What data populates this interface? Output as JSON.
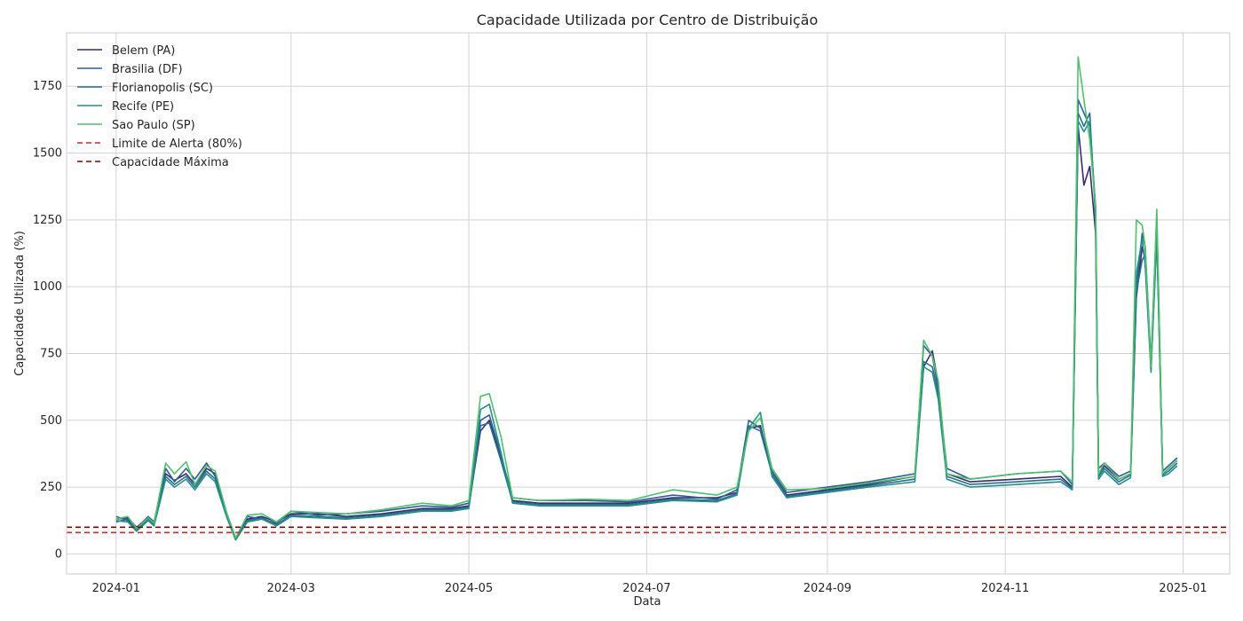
{
  "chart_data": {
    "type": "line",
    "title": "Capacidade Utilizada por Centro de Distribuição",
    "xlabel": "Data",
    "ylabel": "Capacidade Utilizada (%)",
    "xlim": [
      "2023-12-15",
      "2025-01-17"
    ],
    "ylim": [
      -75,
      1950
    ],
    "x_ticks": [
      "2024-01",
      "2024-03",
      "2024-05",
      "2024-07",
      "2024-09",
      "2024-11",
      "2025-01"
    ],
    "x_tick_dates": [
      "2024-01-01",
      "2024-03-01",
      "2024-05-01",
      "2024-07-01",
      "2024-09-01",
      "2024-11-01",
      "2025-01-01"
    ],
    "y_ticks": [
      0,
      250,
      500,
      750,
      1000,
      1250,
      1500,
      1750
    ],
    "grid": true,
    "legend_position": "top-left",
    "series": [
      {
        "name": "Belem (PA)",
        "color": "#3b2a72",
        "x": [
          "2024-01-01",
          "2024-01-05",
          "2024-01-08",
          "2024-01-12",
          "2024-01-14",
          "2024-01-18",
          "2024-01-21",
          "2024-01-25",
          "2024-01-28",
          "2024-02-01",
          "2024-02-04",
          "2024-02-08",
          "2024-02-11",
          "2024-02-15",
          "2024-02-20",
          "2024-02-25",
          "2024-03-01",
          "2024-03-10",
          "2024-03-20",
          "2024-04-01",
          "2024-04-15",
          "2024-04-25",
          "2024-05-01",
          "2024-05-05",
          "2024-05-08",
          "2024-05-12",
          "2024-05-16",
          "2024-05-25",
          "2024-06-10",
          "2024-06-25",
          "2024-07-10",
          "2024-07-25",
          "2024-08-01",
          "2024-08-05",
          "2024-08-09",
          "2024-08-13",
          "2024-08-18",
          "2024-09-01",
          "2024-09-15",
          "2024-10-01",
          "2024-10-04",
          "2024-10-07",
          "2024-10-09",
          "2024-10-12",
          "2024-10-20",
          "2024-11-05",
          "2024-11-20",
          "2024-11-24",
          "2024-11-26",
          "2024-11-28",
          "2024-11-30",
          "2024-12-02",
          "2024-12-03",
          "2024-12-05",
          "2024-12-10",
          "2024-12-14",
          "2024-12-16",
          "2024-12-18",
          "2024-12-19",
          "2024-12-21",
          "2024-12-23",
          "2024-12-25",
          "2024-12-27",
          "2024-12-30"
        ],
        "values": [
          130,
          135,
          100,
          135,
          115,
          300,
          275,
          300,
          260,
          320,
          300,
          150,
          60,
          130,
          140,
          120,
          150,
          150,
          140,
          150,
          170,
          170,
          180,
          460,
          500,
          360,
          200,
          190,
          190,
          190,
          210,
          210,
          230,
          470,
          480,
          300,
          220,
          240,
          260,
          290,
          700,
          760,
          640,
          300,
          270,
          280,
          290,
          250,
          1600,
          1380,
          1450,
          1200,
          300,
          330,
          280,
          300,
          960,
          1150,
          1100,
          700,
          1230,
          300,
          320,
          350
        ]
      },
      {
        "name": "Brasilia (DF)",
        "color": "#2f5d96",
        "x": [
          "2024-01-01",
          "2024-01-05",
          "2024-01-08",
          "2024-01-12",
          "2024-01-14",
          "2024-01-18",
          "2024-01-21",
          "2024-01-25",
          "2024-01-28",
          "2024-02-01",
          "2024-02-04",
          "2024-02-08",
          "2024-02-11",
          "2024-02-15",
          "2024-02-20",
          "2024-02-25",
          "2024-03-01",
          "2024-03-10",
          "2024-03-20",
          "2024-04-01",
          "2024-04-15",
          "2024-04-25",
          "2024-05-01",
          "2024-05-05",
          "2024-05-08",
          "2024-05-12",
          "2024-05-16",
          "2024-05-25",
          "2024-06-10",
          "2024-06-25",
          "2024-07-10",
          "2024-07-25",
          "2024-08-01",
          "2024-08-05",
          "2024-08-09",
          "2024-08-13",
          "2024-08-18",
          "2024-09-01",
          "2024-09-15",
          "2024-10-01",
          "2024-10-04",
          "2024-10-07",
          "2024-10-09",
          "2024-10-12",
          "2024-10-20",
          "2024-11-05",
          "2024-11-20",
          "2024-11-24",
          "2024-11-26",
          "2024-11-28",
          "2024-11-30",
          "2024-12-02",
          "2024-12-03",
          "2024-12-05",
          "2024-12-10",
          "2024-12-14",
          "2024-12-16",
          "2024-12-18",
          "2024-12-19",
          "2024-12-21",
          "2024-12-23",
          "2024-12-25",
          "2024-12-27",
          "2024-12-30"
        ],
        "values": [
          140,
          125,
          95,
          140,
          120,
          320,
          270,
          320,
          280,
          340,
          290,
          145,
          55,
          140,
          130,
          115,
          160,
          145,
          150,
          160,
          180,
          175,
          190,
          500,
          520,
          370,
          210,
          200,
          200,
          195,
          220,
          205,
          240,
          500,
          470,
          310,
          230,
          250,
          270,
          300,
          780,
          740,
          620,
          320,
          280,
          300,
          310,
          260,
          1700,
          1650,
          1600,
          1300,
          320,
          340,
          290,
          310,
          1000,
          1200,
          1150,
          720,
          1260,
          310,
          330,
          360
        ]
      },
      {
        "name": "Florianopolis (SC)",
        "color": "#256f8e",
        "x": [
          "2024-01-01",
          "2024-01-05",
          "2024-01-08",
          "2024-01-12",
          "2024-01-14",
          "2024-01-18",
          "2024-01-21",
          "2024-01-25",
          "2024-01-28",
          "2024-02-01",
          "2024-02-04",
          "2024-02-08",
          "2024-02-11",
          "2024-02-15",
          "2024-02-20",
          "2024-02-25",
          "2024-03-01",
          "2024-03-10",
          "2024-03-20",
          "2024-04-01",
          "2024-04-15",
          "2024-04-25",
          "2024-05-01",
          "2024-05-05",
          "2024-05-08",
          "2024-05-12",
          "2024-05-16",
          "2024-05-25",
          "2024-06-10",
          "2024-06-25",
          "2024-07-10",
          "2024-07-25",
          "2024-08-01",
          "2024-08-05",
          "2024-08-09",
          "2024-08-13",
          "2024-08-18",
          "2024-09-01",
          "2024-09-15",
          "2024-10-01",
          "2024-10-04",
          "2024-10-07",
          "2024-10-09",
          "2024-10-12",
          "2024-10-20",
          "2024-11-05",
          "2024-11-20",
          "2024-11-24",
          "2024-11-26",
          "2024-11-28",
          "2024-11-30",
          "2024-12-02",
          "2024-12-03",
          "2024-12-05",
          "2024-12-10",
          "2024-12-14",
          "2024-12-16",
          "2024-12-18",
          "2024-12-19",
          "2024-12-21",
          "2024-12-23",
          "2024-12-25",
          "2024-12-27",
          "2024-12-30"
        ],
        "values": [
          120,
          130,
          90,
          130,
          110,
          290,
          260,
          290,
          250,
          310,
          280,
          140,
          58,
          125,
          135,
          110,
          145,
          140,
          135,
          145,
          165,
          165,
          175,
          480,
          490,
          350,
          195,
          185,
          185,
          185,
          205,
          200,
          225,
          480,
          460,
          300,
          215,
          235,
          255,
          280,
          720,
          700,
          600,
          290,
          260,
          270,
          280,
          245,
          1650,
          1600,
          1650,
          1250,
          290,
          320,
          270,
          295,
          980,
          1100,
          1120,
          690,
          1200,
          295,
          310,
          340
        ]
      },
      {
        "name": "Recife (PE)",
        "color": "#21918c",
        "x": [
          "2024-01-01",
          "2024-01-05",
          "2024-01-08",
          "2024-01-12",
          "2024-01-14",
          "2024-01-18",
          "2024-01-21",
          "2024-01-25",
          "2024-01-28",
          "2024-02-01",
          "2024-02-04",
          "2024-02-08",
          "2024-02-11",
          "2024-02-15",
          "2024-02-20",
          "2024-02-25",
          "2024-03-01",
          "2024-03-10",
          "2024-03-20",
          "2024-04-01",
          "2024-04-15",
          "2024-04-25",
          "2024-05-01",
          "2024-05-05",
          "2024-05-08",
          "2024-05-12",
          "2024-05-16",
          "2024-05-25",
          "2024-06-10",
          "2024-06-25",
          "2024-07-10",
          "2024-07-25",
          "2024-08-01",
          "2024-08-05",
          "2024-08-09",
          "2024-08-13",
          "2024-08-18",
          "2024-09-01",
          "2024-09-15",
          "2024-10-01",
          "2024-10-04",
          "2024-10-07",
          "2024-10-09",
          "2024-10-12",
          "2024-10-20",
          "2024-11-05",
          "2024-11-20",
          "2024-11-24",
          "2024-11-26",
          "2024-11-28",
          "2024-11-30",
          "2024-12-02",
          "2024-12-03",
          "2024-12-05",
          "2024-12-10",
          "2024-12-14",
          "2024-12-16",
          "2024-12-18",
          "2024-12-19",
          "2024-12-21",
          "2024-12-23",
          "2024-12-25",
          "2024-12-27",
          "2024-12-30"
        ],
        "values": [
          125,
          120,
          85,
          125,
          105,
          280,
          250,
          280,
          240,
          300,
          270,
          135,
          52,
          120,
          130,
          105,
          140,
          135,
          130,
          140,
          160,
          160,
          170,
          540,
          560,
          380,
          190,
          180,
          180,
          180,
          200,
          195,
          220,
          470,
          530,
          290,
          210,
          230,
          250,
          270,
          700,
          680,
          580,
          280,
          250,
          260,
          270,
          240,
          1620,
          1580,
          1620,
          1280,
          280,
          310,
          260,
          285,
          1050,
          1180,
          1080,
          680,
          1180,
          290,
          300,
          330
        ]
      },
      {
        "name": "Sao Paulo (SP)",
        "color": "#4cc26a",
        "x": [
          "2024-01-01",
          "2024-01-05",
          "2024-01-08",
          "2024-01-12",
          "2024-01-14",
          "2024-01-18",
          "2024-01-21",
          "2024-01-25",
          "2024-01-28",
          "2024-02-01",
          "2024-02-04",
          "2024-02-08",
          "2024-02-11",
          "2024-02-15",
          "2024-02-20",
          "2024-02-25",
          "2024-03-01",
          "2024-03-10",
          "2024-03-20",
          "2024-04-01",
          "2024-04-15",
          "2024-04-25",
          "2024-05-01",
          "2024-05-05",
          "2024-05-08",
          "2024-05-12",
          "2024-05-16",
          "2024-05-25",
          "2024-06-10",
          "2024-06-25",
          "2024-07-10",
          "2024-07-25",
          "2024-08-01",
          "2024-08-05",
          "2024-08-09",
          "2024-08-13",
          "2024-08-18",
          "2024-09-01",
          "2024-09-15",
          "2024-10-01",
          "2024-10-04",
          "2024-10-07",
          "2024-10-09",
          "2024-10-12",
          "2024-10-20",
          "2024-11-05",
          "2024-11-20",
          "2024-11-24",
          "2024-11-26",
          "2024-11-28",
          "2024-11-30",
          "2024-12-02",
          "2024-12-03",
          "2024-12-05",
          "2024-12-10",
          "2024-12-14",
          "2024-12-16",
          "2024-12-18",
          "2024-12-19",
          "2024-12-21",
          "2024-12-23",
          "2024-12-25",
          "2024-12-27",
          "2024-12-30"
        ],
        "values": [
          130,
          140,
          95,
          135,
          115,
          340,
          300,
          345,
          260,
          330,
          310,
          150,
          60,
          145,
          150,
          120,
          160,
          155,
          150,
          165,
          190,
          180,
          200,
          590,
          600,
          440,
          210,
          200,
          205,
          200,
          240,
          220,
          250,
          460,
          510,
          320,
          240,
          245,
          265,
          290,
          800,
          740,
          650,
          300,
          280,
          300,
          310,
          270,
          1860,
          1700,
          1550,
          1300,
          300,
          340,
          280,
          300,
          1250,
          1230,
          1150,
          700,
          1290,
          300,
          320,
          350
        ]
      },
      {
        "name": "Limite de Alerta (80%)",
        "color": "#d62728",
        "style": "dashed",
        "x": [
          "2023-12-15",
          "2025-01-17"
        ],
        "values": [
          80,
          80
        ]
      },
      {
        "name": "Capacidade Máxima",
        "color": "#8b0000",
        "style": "dashed",
        "x": [
          "2023-12-15",
          "2025-01-17"
        ],
        "values": [
          100,
          100
        ]
      }
    ]
  }
}
